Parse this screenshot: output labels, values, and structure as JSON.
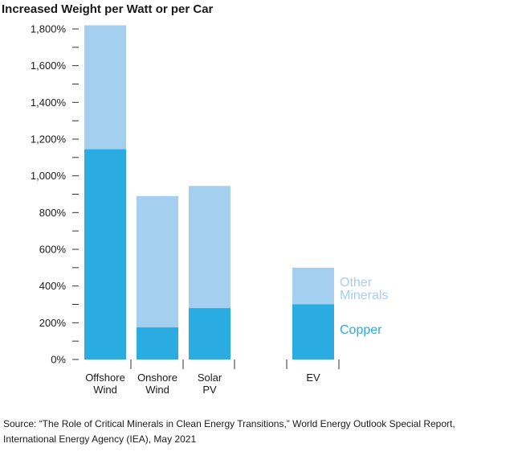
{
  "chart_data": {
    "type": "bar",
    "stacked": true,
    "title": "Increased Weight per Watt or per Car",
    "xlabel": "",
    "ylabel": "",
    "ylim": [
      0,
      1800
    ],
    "yticks": [
      0,
      200,
      400,
      600,
      800,
      1000,
      1200,
      1400,
      1600,
      1800
    ],
    "ytick_labels": [
      "0%",
      "200%",
      "400%",
      "600%",
      "800%",
      "1,000%",
      "1,200%",
      "1,400%",
      "1,600%",
      "1,800%"
    ],
    "categories": [
      {
        "label": [
          "Offshore",
          "Wind"
        ]
      },
      {
        "label": [
          "Onshore",
          "Wind"
        ]
      },
      {
        "label": [
          "Solar",
          "PV"
        ]
      },
      {
        "label": [
          "EV"
        ]
      }
    ],
    "series": [
      {
        "name": "Copper",
        "color": "#2AABE2",
        "values": [
          1145,
          175,
          280,
          300
        ]
      },
      {
        "name": "Other Minerals",
        "color": "#A4CFEF",
        "values": [
          675,
          715,
          665,
          200
        ]
      }
    ],
    "legend": {
      "placement": "right of EV bar",
      "entries": [
        {
          "text": [
            "Other",
            "Minerals"
          ],
          "color": "#A4CFEF"
        },
        {
          "text": [
            "Copper"
          ],
          "color": "#2AABE2"
        }
      ]
    },
    "grid": false
  },
  "source": "Source: “The Role of Critical Minerals in Clean Energy Transitions,” World Energy Outlook Special Report, International Energy Agency (IEA), May 2021"
}
